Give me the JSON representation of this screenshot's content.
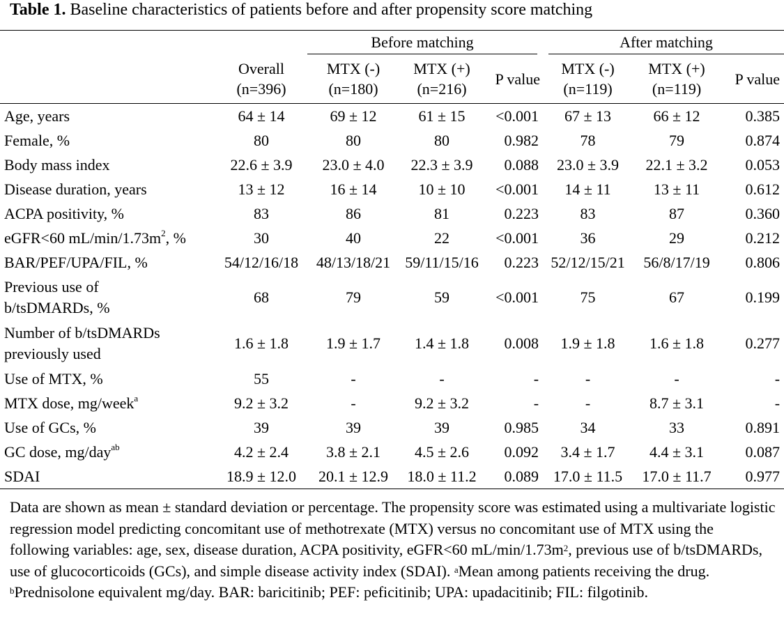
{
  "caption": {
    "label": "Table 1.",
    "text": " Baseline characteristics of patients before and after propensity score matching"
  },
  "groups": {
    "before": "Before matching",
    "after": "After matching"
  },
  "columns": {
    "overall": [
      "Overall",
      "(n=396)"
    ],
    "before_neg": [
      "MTX (-)",
      "(n=180)"
    ],
    "before_pos": [
      "MTX (+)",
      "(n=216)"
    ],
    "before_p": "P value",
    "after_neg": [
      "MTX (-)",
      "(n=119)"
    ],
    "after_pos": [
      "MTX (+)",
      "(n=119)"
    ],
    "after_p": "P value"
  },
  "rows": [
    {
      "label": "Age, years",
      "values": [
        "64 ± 14",
        "69 ± 12",
        "61 ± 15",
        "<0.001",
        "67 ± 13",
        "66 ± 12",
        "0.385"
      ]
    },
    {
      "label": "Female, %",
      "values": [
        "80",
        "80",
        "80",
        "0.982",
        "78",
        "79",
        "0.874"
      ]
    },
    {
      "label": "Body mass index",
      "values": [
        "22.6 ± 3.9",
        "23.0 ± 4.0",
        "22.3 ± 3.9",
        "0.088",
        "23.0 ± 3.9",
        "22.1 ± 3.2",
        "0.053"
      ]
    },
    {
      "label": "Disease duration, years",
      "values": [
        "13 ± 12",
        "16 ± 14",
        "10 ± 10",
        "<0.001",
        "14 ± 11",
        "13 ± 11",
        "0.612"
      ]
    },
    {
      "label": "ACPA positivity, %",
      "values": [
        "83",
        "86",
        "81",
        "0.223",
        "83",
        "87",
        "0.360"
      ]
    },
    {
      "label": "eGFR<60 mL/min/1.73m",
      "label_sup": "2",
      "label_after": ", %",
      "values": [
        "30",
        "40",
        "22",
        "<0.001",
        "36",
        "29",
        "0.212"
      ]
    },
    {
      "label": "BAR/PEF/UPA/FIL, %",
      "values": [
        "54/12/16/18",
        "48/13/18/21",
        "59/11/15/16",
        "0.223",
        "52/12/15/21",
        "56/8/17/19",
        "0.806"
      ]
    },
    {
      "label": "Previous use of",
      "label2": "b/tsDMARDs, %",
      "values": [
        "68",
        "79",
        "59",
        "<0.001",
        "75",
        "67",
        "0.199"
      ]
    },
    {
      "label": "Number of b/tsDMARDs",
      "label2": "previously used",
      "values": [
        "1.6 ± 1.8",
        "1.9 ± 1.7",
        "1.4 ± 1.8",
        "0.008",
        "1.9 ± 1.8",
        "1.6 ± 1.8",
        "0.277"
      ]
    },
    {
      "label": "Use of MTX, %",
      "values": [
        "55",
        "-",
        "-",
        "-",
        "-",
        "-",
        "-"
      ]
    },
    {
      "label": "MTX dose, mg/week",
      "label_sup": "a",
      "values": [
        "9.2 ± 3.2",
        "-",
        "9.2 ± 3.2",
        "-",
        "-",
        "8.7 ± 3.1",
        "-"
      ]
    },
    {
      "label": "Use of GCs, %",
      "values": [
        "39",
        "39",
        "39",
        "0.985",
        "34",
        "33",
        "0.891"
      ]
    },
    {
      "label": "GC dose, mg/day",
      "label_sup": "ab",
      "values": [
        "4.2 ± 2.4",
        "3.8 ± 2.1",
        "4.5 ± 2.6",
        "0.092",
        "3.4 ± 1.7",
        "4.4 ± 3.1",
        "0.087"
      ]
    },
    {
      "label": "SDAI",
      "values": [
        "18.9 ± 12.0",
        "20.1 ± 12.9",
        "18.0 ± 11.2",
        "0.089",
        "17.0 ± 11.5",
        "17.0 ± 11.7",
        "0.977"
      ]
    }
  ],
  "note": {
    "p1": "Data are shown as mean ± standard deviation or percentage. The propensity score was estimated using a multivariate logistic regression model predicting concomitant use of methotrexate (MTX) versus no concomitant use of MTX using the following variables: age, sex, disease duration, ACPA positivity, eGFR<60 mL/min/1.73m",
    "sup1": "2",
    "p2": ", previous use of b/tsDMARDs, use of glucocorticoids (GCs), and simple disease activity index (SDAI). ",
    "sup_a": "a",
    "p3": "Mean among patients receiving the drug. ",
    "sup_b": "b",
    "p4": "Prednisolone equivalent mg/day. BAR: baricitinib; PEF: peficitinib; UPA: upadacitinib; FIL: filgotinib."
  }
}
